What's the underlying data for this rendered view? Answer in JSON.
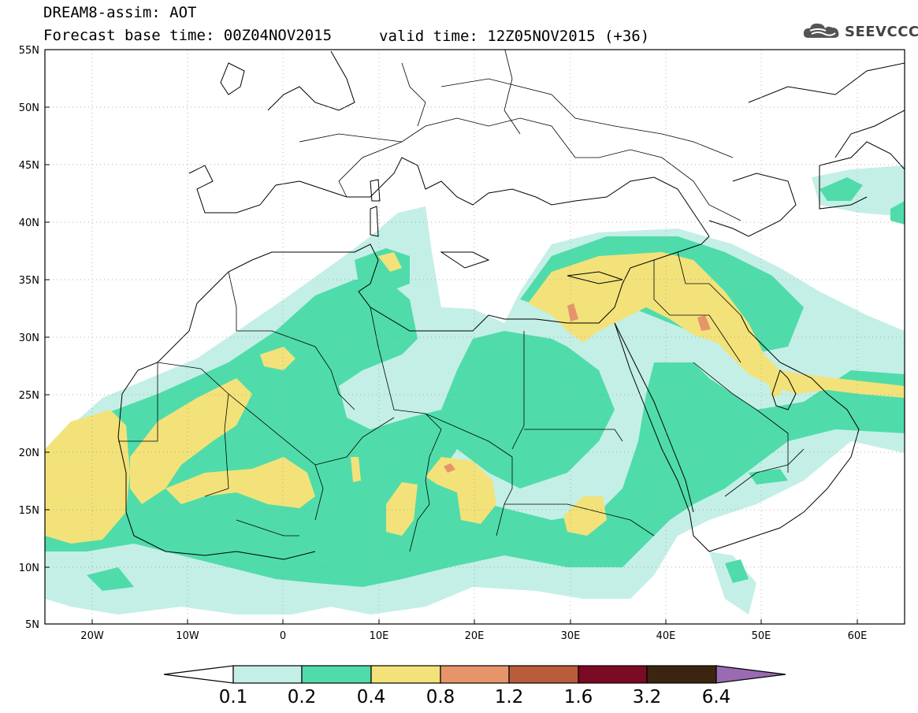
{
  "header": {
    "title": "DREAM8-assim: AOT",
    "base_time": "Forecast base time: 00Z04NOV2015",
    "valid_time": "valid time: 12Z05NOV2015 (+36)",
    "logo_text": "SEEVCCC"
  },
  "map": {
    "lon_range": [
      -25,
      65
    ],
    "lat_range": [
      5,
      55
    ],
    "lat_labels": [
      "55N",
      "50N",
      "45N",
      "40N",
      "35N",
      "30N",
      "25N",
      "20N",
      "15N",
      "10N",
      "5N"
    ],
    "lon_labels": [
      "20W",
      "10W",
      "0",
      "10E",
      "20E",
      "30E",
      "40E",
      "50E",
      "60E"
    ],
    "grid": "dotted"
  },
  "colorbar": {
    "labels": [
      "0.1",
      "0.2",
      "0.4",
      "0.8",
      "1.2",
      "1.6",
      "3.2",
      "6.4"
    ],
    "colors": [
      "#ffffff",
      "#c4efe6",
      "#4fdcaa",
      "#f3e27a",
      "#e6956a",
      "#b95c3a",
      "#7b0a24",
      "#3c2510",
      "#9a6bb0"
    ]
  },
  "colors": {
    "aot_01_02": "#c4efe6",
    "aot_02_04": "#4fdcaa",
    "aot_04_08": "#f3e27a",
    "aot_08_12": "#e6956a"
  }
}
